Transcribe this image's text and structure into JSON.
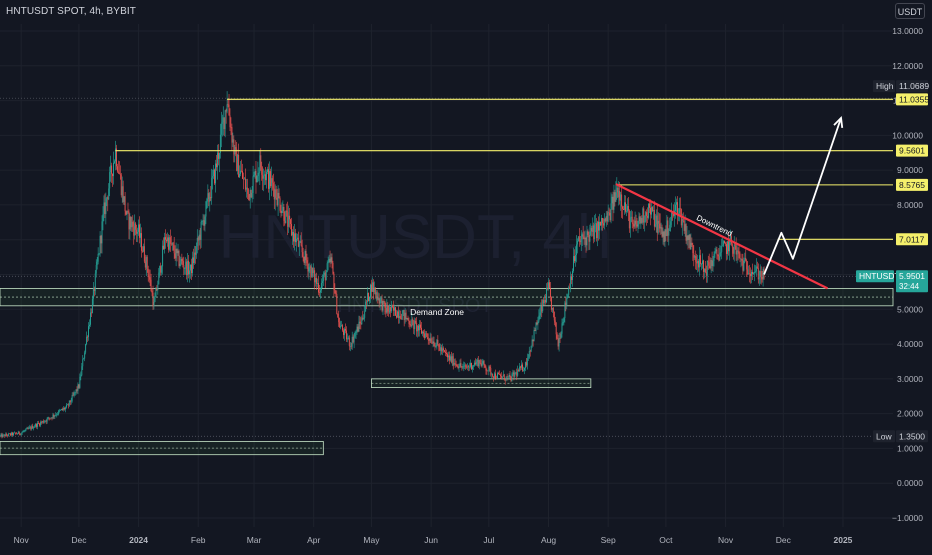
{
  "header": {
    "title": "HNTUSDT SPOT, 4h, BYBIT",
    "currency": "USDT"
  },
  "watermark": {
    "main": "HNTUSDT, 4h",
    "sub": "HNTUSDT SPOT"
  },
  "chart_data": {
    "type": "candlestick",
    "symbol": "HNTUSDT",
    "y_ticks": [
      13.0,
      12.0,
      11.0,
      10.0,
      9.0,
      8.0,
      7.0,
      6.0,
      5.0,
      4.0,
      3.0,
      2.0,
      1.0,
      0.0,
      -1.0
    ],
    "y_tick_labels": [
      "13.0000",
      "12.0000",
      "11.0000",
      "10.0000",
      "9.0000",
      "8.0000",
      "7.0000",
      "6.0000",
      "5.0000",
      "4.0000",
      "3.0000",
      "2.0000",
      "1.0000",
      "0.0000",
      "−1.0000"
    ],
    "ylim": [
      -1.1,
      13.6
    ],
    "x_ticks": [
      {
        "label": "Nov",
        "date": "2023-11-01"
      },
      {
        "label": "Dec",
        "date": "2023-12-01"
      },
      {
        "label": "2024",
        "date": "2024-01-01"
      },
      {
        "label": "Feb",
        "date": "2024-02-01"
      },
      {
        "label": "Mar",
        "date": "2024-03-01"
      },
      {
        "label": "Apr",
        "date": "2024-04-01"
      },
      {
        "label": "May",
        "date": "2024-05-01"
      },
      {
        "label": "Jun",
        "date": "2024-06-01"
      },
      {
        "label": "Jul",
        "date": "2024-07-01"
      },
      {
        "label": "Aug",
        "date": "2024-08-01"
      },
      {
        "label": "Sep",
        "date": "2024-09-01"
      },
      {
        "label": "Oct",
        "date": "2024-10-01"
      },
      {
        "label": "Nov",
        "date": "2024-11-01"
      },
      {
        "label": "Dec",
        "date": "2024-12-01"
      },
      {
        "label": "2025",
        "date": "2025-01-01"
      }
    ],
    "xlim": [
      "2023-10-21",
      "2025-01-27"
    ],
    "price_path": [
      {
        "date": "2023-10-21",
        "price": 1.35
      },
      {
        "date": "2023-11-01",
        "price": 1.45
      },
      {
        "date": "2023-11-15",
        "price": 1.85
      },
      {
        "date": "2023-11-25",
        "price": 2.2
      },
      {
        "date": "2023-12-01",
        "price": 2.8
      },
      {
        "date": "2023-12-08",
        "price": 5.2
      },
      {
        "date": "2023-12-14",
        "price": 7.8
      },
      {
        "date": "2023-12-20",
        "price": 9.56
      },
      {
        "date": "2023-12-26",
        "price": 7.6
      },
      {
        "date": "2024-01-01",
        "price": 7.2
      },
      {
        "date": "2024-01-06",
        "price": 6.1
      },
      {
        "date": "2024-01-09",
        "price": 5.1
      },
      {
        "date": "2024-01-15",
        "price": 7.1
      },
      {
        "date": "2024-01-22",
        "price": 6.4
      },
      {
        "date": "2024-01-28",
        "price": 6.1
      },
      {
        "date": "2024-02-03",
        "price": 7.4
      },
      {
        "date": "2024-02-10",
        "price": 9.0
      },
      {
        "date": "2024-02-16",
        "price": 11.07
      },
      {
        "date": "2024-02-20",
        "price": 9.4
      },
      {
        "date": "2024-02-27",
        "price": 8.3
      },
      {
        "date": "2024-03-04",
        "price": 9.2
      },
      {
        "date": "2024-03-12",
        "price": 8.4
      },
      {
        "date": "2024-03-20",
        "price": 7.3
      },
      {
        "date": "2024-03-28",
        "price": 6.4
      },
      {
        "date": "2024-04-04",
        "price": 5.6
      },
      {
        "date": "2024-04-10",
        "price": 6.4
      },
      {
        "date": "2024-04-14",
        "price": 4.6
      },
      {
        "date": "2024-04-20",
        "price": 4.0
      },
      {
        "date": "2024-04-26",
        "price": 4.7
      },
      {
        "date": "2024-05-01",
        "price": 5.7
      },
      {
        "date": "2024-05-08",
        "price": 5.0
      },
      {
        "date": "2024-05-16",
        "price": 4.9
      },
      {
        "date": "2024-05-24",
        "price": 4.5
      },
      {
        "date": "2024-06-02",
        "price": 4.1
      },
      {
        "date": "2024-06-10",
        "price": 3.6
      },
      {
        "date": "2024-06-18",
        "price": 3.3
      },
      {
        "date": "2024-06-26",
        "price": 3.5
      },
      {
        "date": "2024-07-04",
        "price": 3.1
      },
      {
        "date": "2024-07-12",
        "price": 3.0
      },
      {
        "date": "2024-07-20",
        "price": 3.4
      },
      {
        "date": "2024-07-26",
        "price": 4.6
      },
      {
        "date": "2024-08-01",
        "price": 5.6
      },
      {
        "date": "2024-08-06",
        "price": 4.0
      },
      {
        "date": "2024-08-10",
        "price": 5.2
      },
      {
        "date": "2024-08-16",
        "price": 6.9
      },
      {
        "date": "2024-08-24",
        "price": 7.2
      },
      {
        "date": "2024-09-01",
        "price": 7.6
      },
      {
        "date": "2024-09-06",
        "price": 8.5
      },
      {
        "date": "2024-09-14",
        "price": 7.3
      },
      {
        "date": "2024-09-22",
        "price": 7.9
      },
      {
        "date": "2024-09-30",
        "price": 7.1
      },
      {
        "date": "2024-10-07",
        "price": 8.0
      },
      {
        "date": "2024-10-14",
        "price": 6.8
      },
      {
        "date": "2024-10-21",
        "price": 6.1
      },
      {
        "date": "2024-10-28",
        "price": 6.6
      },
      {
        "date": "2024-11-04",
        "price": 6.9
      },
      {
        "date": "2024-11-10",
        "price": 6.3
      },
      {
        "date": "2024-11-16",
        "price": 6.1
      },
      {
        "date": "2024-11-21",
        "price": 5.95
      }
    ],
    "annotations": {
      "resistance_levels": [
        {
          "value": 11.0355,
          "label": "11.0355",
          "start": "2024-02-16"
        },
        {
          "value": 9.5601,
          "label": "9.5601",
          "start": "2023-12-20"
        },
        {
          "value": 8.5765,
          "label": "8.5765",
          "start": "2024-09-06"
        },
        {
          "value": 7.0117,
          "label": "7.0117",
          "start": "2024-11-28"
        }
      ],
      "high": {
        "label": "High",
        "value": 11.0689,
        "display": "11.0689"
      },
      "low": {
        "label": "Low",
        "value": 1.35,
        "display": "1.3500"
      },
      "current_price": {
        "symbol": "HNTUSDT",
        "value": 5.9501,
        "display": "5.9501",
        "countdown": "32:44"
      },
      "demand_zone": {
        "label": "Demand Zone",
        "top": 5.6,
        "bottom": 5.1,
        "start": "2023-10-21",
        "end": "2025-01-27"
      },
      "boxes": [
        {
          "top": 3.0,
          "bottom": 2.75,
          "start": "2024-05-01",
          "end": "2024-08-23"
        },
        {
          "top": 1.2,
          "bottom": 0.82,
          "start": "2023-10-21",
          "end": "2024-04-06"
        }
      ],
      "downtrend": {
        "label": "Downtrend",
        "start": {
          "date": "2024-09-05",
          "price": 8.6
        },
        "end": {
          "date": "2024-12-24",
          "price": 5.6
        }
      },
      "projection": [
        {
          "date": "2024-11-21",
          "price": 6.0
        },
        {
          "date": "2024-11-30",
          "price": 7.2
        },
        {
          "date": "2024-12-06",
          "price": 6.45
        },
        {
          "date": "2024-12-31",
          "price": 10.5
        }
      ]
    }
  }
}
